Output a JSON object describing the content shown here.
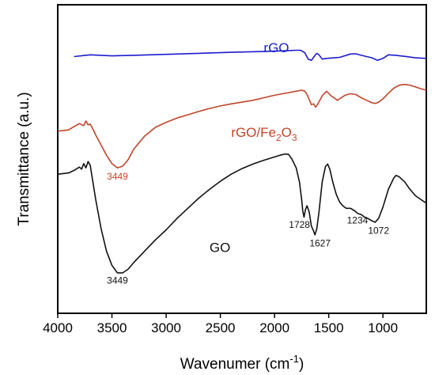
{
  "chart_data": {
    "type": "line",
    "title": "",
    "xlabel": "Wavenumer (cm",
    "xlabel_sup": "-1",
    "xlabel_end": ")",
    "ylabel": "Transmittance (a.u.)",
    "xlim": [
      4000,
      600
    ],
    "x_reversed": true,
    "y_ticks_shown": false,
    "grid": false,
    "legend": "none",
    "xticks": [
      4000,
      3500,
      3000,
      2500,
      2000,
      1500,
      1000
    ],
    "series": [
      {
        "name": "rGO",
        "color": "#1c1ccf",
        "label_pos": [
          2100,
          8.72
        ],
        "points": [
          [
            3850,
            8.55
          ],
          [
            3700,
            8.62
          ],
          [
            3500,
            8.58
          ],
          [
            3300,
            8.6
          ],
          [
            3000,
            8.64
          ],
          [
            2700,
            8.68
          ],
          [
            2400,
            8.72
          ],
          [
            2100,
            8.75
          ],
          [
            1900,
            8.78
          ],
          [
            1800,
            8.8
          ],
          [
            1760,
            8.8
          ],
          [
            1720,
            8.7
          ],
          [
            1690,
            8.45
          ],
          [
            1660,
            8.4
          ],
          [
            1630,
            8.58
          ],
          [
            1610,
            8.68
          ],
          [
            1590,
            8.62
          ],
          [
            1560,
            8.45
          ],
          [
            1520,
            8.48
          ],
          [
            1450,
            8.5
          ],
          [
            1400,
            8.52
          ],
          [
            1300,
            8.65
          ],
          [
            1250,
            8.66
          ],
          [
            1200,
            8.6
          ],
          [
            1150,
            8.55
          ],
          [
            1100,
            8.5
          ],
          [
            1050,
            8.4
          ],
          [
            1000,
            8.48
          ],
          [
            950,
            8.62
          ],
          [
            880,
            8.6
          ],
          [
            800,
            8.56
          ],
          [
            700,
            8.5
          ],
          [
            600,
            8.48
          ]
        ]
      },
      {
        "name": "rGO/Fe",
        "name_sub1": "2",
        "name_mid": "O",
        "name_sub2": "3",
        "color": "#c0442a",
        "label_pos": [
          2400,
          5.38
        ],
        "points": [
          [
            4000,
            5.6
          ],
          [
            3900,
            5.65
          ],
          [
            3850,
            5.78
          ],
          [
            3800,
            5.9
          ],
          [
            3760,
            5.82
          ],
          [
            3740,
            6.0
          ],
          [
            3720,
            5.85
          ],
          [
            3700,
            5.88
          ],
          [
            3680,
            5.72
          ],
          [
            3650,
            5.45
          ],
          [
            3600,
            5.05
          ],
          [
            3550,
            4.65
          ],
          [
            3500,
            4.32
          ],
          [
            3450,
            4.15
          ],
          [
            3400,
            4.22
          ],
          [
            3350,
            4.48
          ],
          [
            3300,
            4.88
          ],
          [
            3200,
            5.4
          ],
          [
            3100,
            5.75
          ],
          [
            3000,
            5.95
          ],
          [
            2900,
            6.12
          ],
          [
            2800,
            6.25
          ],
          [
            2700,
            6.38
          ],
          [
            2600,
            6.5
          ],
          [
            2500,
            6.6
          ],
          [
            2400,
            6.68
          ],
          [
            2300,
            6.75
          ],
          [
            2200,
            6.82
          ],
          [
            2100,
            6.92
          ],
          [
            2000,
            7.02
          ],
          [
            1900,
            7.1
          ],
          [
            1800,
            7.18
          ],
          [
            1750,
            7.22
          ],
          [
            1720,
            7.18
          ],
          [
            1700,
            7.05
          ],
          [
            1680,
            6.85
          ],
          [
            1660,
            6.65
          ],
          [
            1640,
            6.68
          ],
          [
            1620,
            6.55
          ],
          [
            1600,
            6.68
          ],
          [
            1560,
            7.0
          ],
          [
            1520,
            7.18
          ],
          [
            1500,
            7.1
          ],
          [
            1480,
            7.0
          ],
          [
            1450,
            6.92
          ],
          [
            1420,
            6.82
          ],
          [
            1400,
            6.88
          ],
          [
            1350,
            7.02
          ],
          [
            1300,
            7.08
          ],
          [
            1250,
            7.05
          ],
          [
            1200,
            6.92
          ],
          [
            1150,
            6.82
          ],
          [
            1100,
            6.72
          ],
          [
            1070,
            6.7
          ],
          [
            1040,
            6.75
          ],
          [
            1000,
            6.88
          ],
          [
            950,
            7.1
          ],
          [
            900,
            7.3
          ],
          [
            850,
            7.42
          ],
          [
            800,
            7.45
          ],
          [
            750,
            7.42
          ],
          [
            700,
            7.35
          ],
          [
            650,
            7.28
          ],
          [
            600,
            7.22
          ]
        ]
      },
      {
        "name": "GO",
        "color": "#111111",
        "label_pos": [
          2600,
          0.82
        ],
        "points": [
          [
            4000,
            3.9
          ],
          [
            3900,
            3.95
          ],
          [
            3850,
            4.05
          ],
          [
            3800,
            4.18
          ],
          [
            3780,
            4.1
          ],
          [
            3760,
            4.32
          ],
          [
            3740,
            4.15
          ],
          [
            3720,
            4.4
          ],
          [
            3700,
            4.25
          ],
          [
            3680,
            3.7
          ],
          [
            3650,
            2.9
          ],
          [
            3600,
            1.75
          ],
          [
            3550,
            0.85
          ],
          [
            3500,
            0.3
          ],
          [
            3450,
            0.0
          ],
          [
            3400,
            0.0
          ],
          [
            3350,
            0.15
          ],
          [
            3300,
            0.4
          ],
          [
            3200,
            0.85
          ],
          [
            3100,
            1.3
          ],
          [
            3000,
            1.7
          ],
          [
            2900,
            2.15
          ],
          [
            2800,
            2.55
          ],
          [
            2700,
            2.95
          ],
          [
            2600,
            3.3
          ],
          [
            2500,
            3.62
          ],
          [
            2400,
            3.9
          ],
          [
            2300,
            4.12
          ],
          [
            2200,
            4.3
          ],
          [
            2100,
            4.45
          ],
          [
            2000,
            4.58
          ],
          [
            1950,
            4.65
          ],
          [
            1900,
            4.7
          ],
          [
            1870,
            4.68
          ],
          [
            1840,
            4.5
          ],
          [
            1800,
            4.15
          ],
          [
            1770,
            3.6
          ],
          [
            1750,
            2.9
          ],
          [
            1740,
            2.45
          ],
          [
            1728,
            2.2
          ],
          [
            1715,
            2.5
          ],
          [
            1700,
            2.65
          ],
          [
            1680,
            2.4
          ],
          [
            1660,
            1.85
          ],
          [
            1640,
            1.65
          ],
          [
            1627,
            1.5
          ],
          [
            1610,
            1.75
          ],
          [
            1590,
            2.4
          ],
          [
            1560,
            3.6
          ],
          [
            1530,
            4.2
          ],
          [
            1510,
            4.3
          ],
          [
            1490,
            4.1
          ],
          [
            1460,
            3.55
          ],
          [
            1430,
            3.1
          ],
          [
            1400,
            2.8
          ],
          [
            1370,
            2.65
          ],
          [
            1340,
            2.55
          ],
          [
            1300,
            2.55
          ],
          [
            1260,
            2.45
          ],
          [
            1234,
            2.35
          ],
          [
            1200,
            2.3
          ],
          [
            1170,
            2.2
          ],
          [
            1140,
            2.15
          ],
          [
            1100,
            2.05
          ],
          [
            1072,
            2.0
          ],
          [
            1040,
            2.15
          ],
          [
            1000,
            2.6
          ],
          [
            950,
            3.3
          ],
          [
            900,
            3.75
          ],
          [
            880,
            3.85
          ],
          [
            850,
            3.8
          ],
          [
            800,
            3.6
          ],
          [
            750,
            3.3
          ],
          [
            700,
            3.05
          ],
          [
            650,
            2.9
          ],
          [
            600,
            2.75
          ]
        ]
      }
    ],
    "annotations": [
      {
        "text": "3449",
        "x": 3449,
        "y": 3.68,
        "color": "#c0442a"
      },
      {
        "text": "3449",
        "x": 3449,
        "y": -0.42,
        "color": "#111111"
      },
      {
        "text": "1728",
        "x": 1770,
        "y": 1.78,
        "color": "#111111"
      },
      {
        "text": "1627",
        "x": 1580,
        "y": 1.05,
        "color": "#111111"
      },
      {
        "text": "1234",
        "x": 1235,
        "y": 1.95,
        "color": "#111111"
      },
      {
        "text": "1072",
        "x": 1040,
        "y": 1.55,
        "color": "#111111"
      }
    ],
    "ylim": [
      -1.6,
      10.6
    ]
  }
}
